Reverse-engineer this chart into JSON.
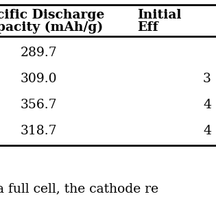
{
  "col1_header_line1": "cific Discharge",
  "col1_header_line2": "pacity (mAh/g)",
  "col2_header_line1": "Initial",
  "col2_header_line2": "Eff",
  "col1_values": [
    "289.7",
    "309.0",
    "356.7",
    "318.7"
  ],
  "col2_values": [
    "",
    "3",
    "4",
    "4"
  ],
  "background_color": "#ffffff",
  "text_color": "#000000",
  "font_size": 13.5,
  "header_font_size": 13.5,
  "footer_text": "a full cell, the cathode re"
}
